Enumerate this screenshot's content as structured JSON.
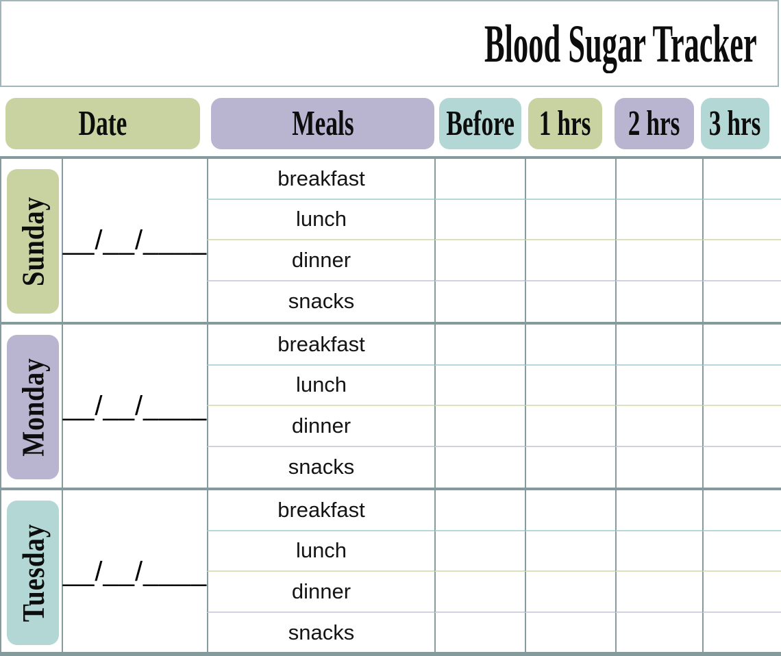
{
  "title": "Blood Sugar Tracker",
  "colors": {
    "green": "#c8d3a1",
    "lavender": "#b9b5d0",
    "teal": "#b3d7d4",
    "grid": "#849a9d",
    "title_border": "#a3b4ba",
    "sep_blue": "#b5d6da",
    "sep_green": "#dde1bb",
    "sep_lavender": "#d3d0e1",
    "text": "#111111"
  },
  "header": {
    "columns": [
      {
        "label": "Date",
        "color": "green"
      },
      {
        "label": "Meals",
        "color": "lavender"
      },
      {
        "label": "Before",
        "color": "teal"
      },
      {
        "label": "1 hrs",
        "color": "green"
      },
      {
        "label": "2 hrs",
        "color": "lavender"
      },
      {
        "label": "3 hrs",
        "color": "teal"
      }
    ]
  },
  "value_columns": [
    "Before",
    "1 hrs",
    "2 hrs",
    "3 hrs"
  ],
  "days": [
    {
      "name": "Sunday",
      "color": "green",
      "date_placeholder": "__/__/____",
      "meals": [
        "breakfast",
        "lunch",
        "dinner",
        "snacks"
      ]
    },
    {
      "name": "Monday",
      "color": "lavender",
      "date_placeholder": "__/__/____",
      "meals": [
        "breakfast",
        "lunch",
        "dinner",
        "snacks"
      ]
    },
    {
      "name": "Tuesday",
      "color": "teal",
      "date_placeholder": "__/__/____",
      "meals": [
        "breakfast",
        "lunch",
        "dinner",
        "snacks"
      ]
    }
  ]
}
